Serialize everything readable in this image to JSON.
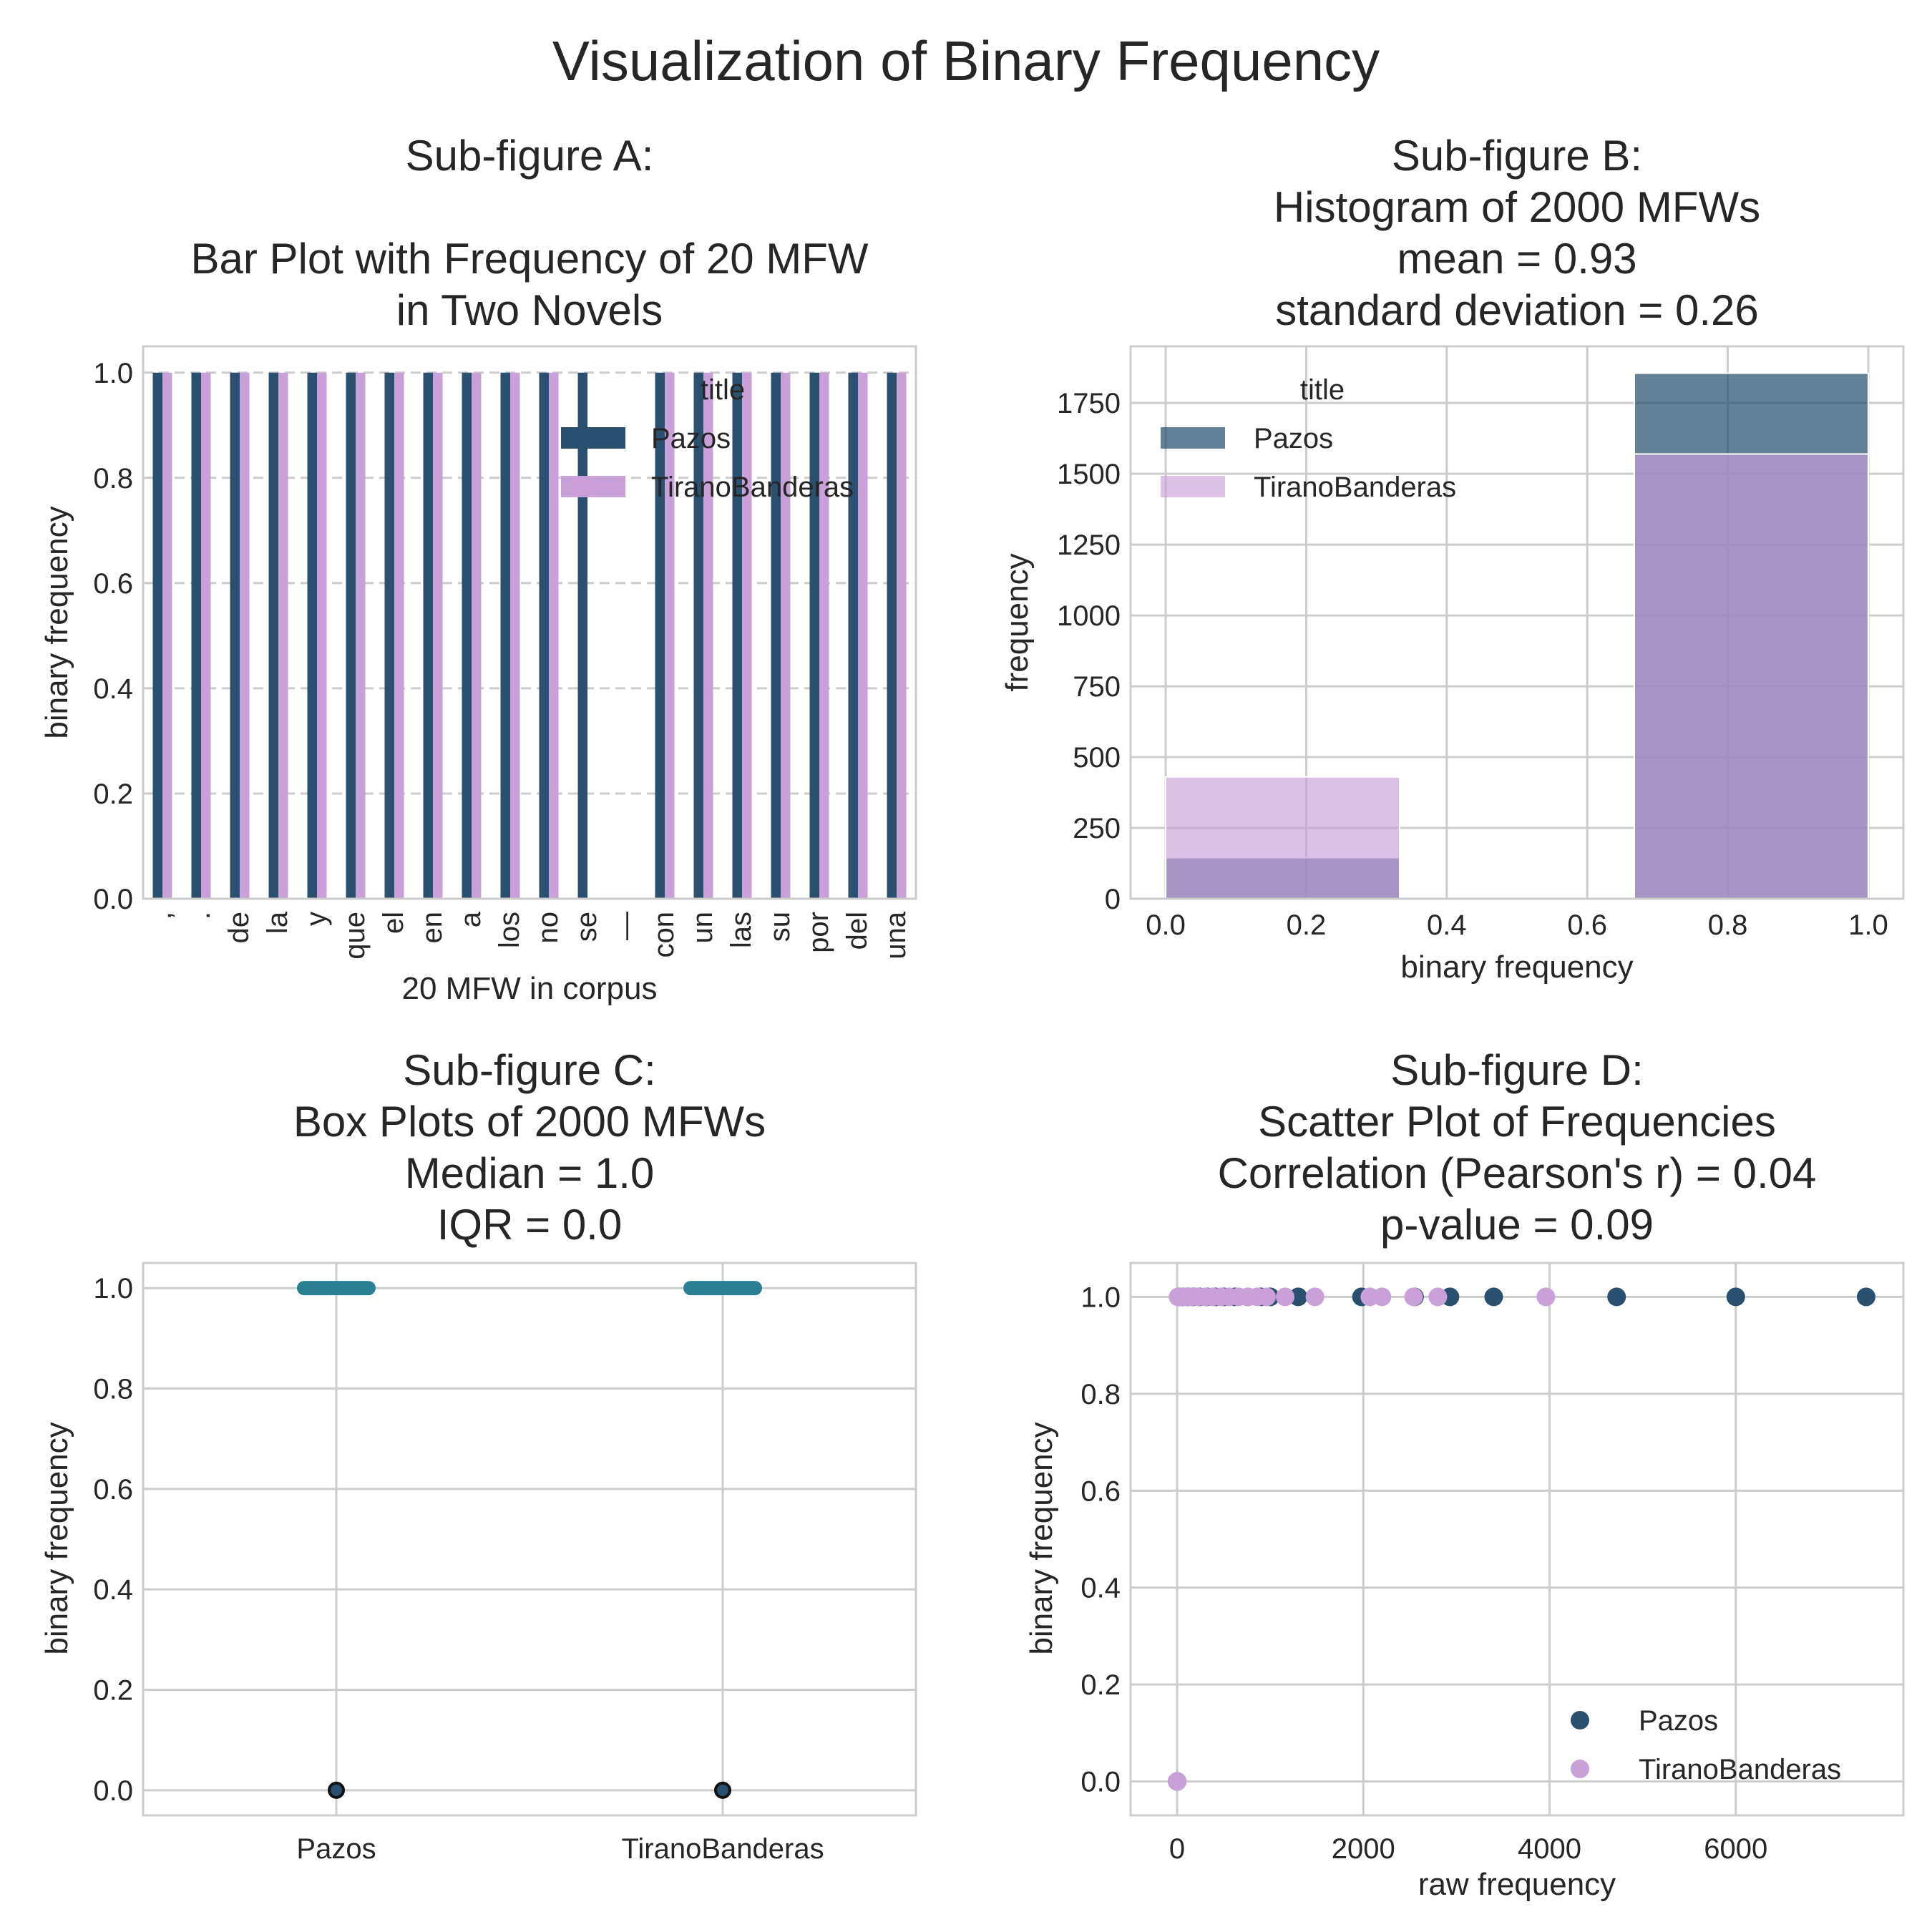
{
  "suptitle": "Visualization of Binary Frequency",
  "colors": {
    "pazos": "#2a5070",
    "tirano": "#c9a0d8",
    "box": "#2a8090",
    "grid": "#cccccc"
  },
  "chart_data": [
    {
      "id": "A",
      "type": "bar",
      "title_lines": [
        "Sub-figure A:",
        "",
        "Bar Plot with Frequency of 20 MFW",
        "in Two Novels"
      ],
      "xlabel": "20 MFW in corpus",
      "ylabel": "binary frequency",
      "ylim": [
        0,
        1.05
      ],
      "yticks": [
        "0.0",
        "0.2",
        "0.4",
        "0.6",
        "0.8",
        "1.0"
      ],
      "categories": [
        ",",
        ".",
        "de",
        "la",
        "y",
        "que",
        "el",
        "en",
        "a",
        "los",
        "no",
        "se",
        "—",
        "con",
        "un",
        "las",
        "su",
        "por",
        "del",
        "una"
      ],
      "series": [
        {
          "name": "Pazos",
          "values": [
            1,
            1,
            1,
            1,
            1,
            1,
            1,
            1,
            1,
            1,
            1,
            1,
            0,
            1,
            1,
            1,
            1,
            1,
            1,
            1
          ]
        },
        {
          "name": "TiranoBanderas",
          "values": [
            1,
            1,
            1,
            1,
            1,
            1,
            1,
            1,
            1,
            1,
            1,
            0,
            0,
            1,
            1,
            1,
            1,
            1,
            1,
            1
          ]
        }
      ],
      "legend": {
        "title": "title",
        "placement": "upper-right"
      }
    },
    {
      "id": "B",
      "type": "histogram",
      "title_lines": [
        "Sub-figure B:",
        "Histogram of 2000 MFWs",
        "mean =  0.93",
        "standard deviation = 0.26"
      ],
      "xlabel": "binary frequency",
      "ylabel": "frequency",
      "xlim": [
        -0.05,
        1.05
      ],
      "ylim": [
        0,
        1950
      ],
      "xticks": [
        "0.0",
        "0.2",
        "0.4",
        "0.6",
        "0.8",
        "1.0"
      ],
      "yticks": [
        "0",
        "250",
        "500",
        "750",
        "1000",
        "1250",
        "1500",
        "1750"
      ],
      "bins": [
        [
          0,
          0.333
        ],
        [
          0.333,
          0.667
        ],
        [
          0.667,
          1.0
        ]
      ],
      "series": [
        {
          "name": "Pazos",
          "counts": [
            145,
            0,
            1855
          ]
        },
        {
          "name": "TiranoBanderas",
          "counts": [
            430,
            0,
            1570
          ]
        }
      ],
      "legend": {
        "title": "title",
        "placement": "upper-left"
      }
    },
    {
      "id": "C",
      "type": "box",
      "title_lines": [
        "Sub-figure C:",
        "Box Plots of 2000 MFWs",
        "Median =  1.0",
        "IQR = 0.0"
      ],
      "xlabel": "",
      "ylabel": "binary frequency",
      "ylim": [
        -0.05,
        1.05
      ],
      "yticks": [
        "0.0",
        "0.2",
        "0.4",
        "0.6",
        "0.8",
        "1.0"
      ],
      "categories": [
        "Pazos",
        "TiranoBanderas"
      ],
      "median": [
        1.0,
        1.0
      ],
      "q1": [
        1.0,
        1.0
      ],
      "q3": [
        1.0,
        1.0
      ],
      "outliers": [
        [
          0.0
        ],
        [
          0.0
        ]
      ]
    },
    {
      "id": "D",
      "type": "scatter",
      "title_lines": [
        "Sub-figure D:",
        "Scatter Plot of Frequencies",
        "Correlation (Pearson's r) =  0.04",
        "p-value = 0.09"
      ],
      "xlabel": "raw frequency",
      "ylabel": "binary frequency",
      "xlim": [
        -500,
        7800
      ],
      "ylim": [
        -0.07,
        1.07
      ],
      "xticks": [
        "0",
        "2000",
        "4000",
        "6000"
      ],
      "yticks": [
        "0.0",
        "0.2",
        "0.4",
        "0.6",
        "0.8",
        "1.0"
      ],
      "series": [
        {
          "name": "Pazos",
          "points": [
            [
              0,
              0
            ],
            [
              20,
              1
            ],
            [
              60,
              1
            ],
            [
              110,
              1
            ],
            [
              170,
              1
            ],
            [
              240,
              1
            ],
            [
              320,
              1
            ],
            [
              410,
              1
            ],
            [
              500,
              1
            ],
            [
              620,
              1
            ],
            [
              760,
              1
            ],
            [
              900,
              1
            ],
            [
              1000,
              1
            ],
            [
              1300,
              1
            ],
            [
              1980,
              1
            ],
            [
              2550,
              1
            ],
            [
              2930,
              1
            ],
            [
              3400,
              1
            ],
            [
              4720,
              1
            ],
            [
              6000,
              1
            ],
            [
              7400,
              1
            ]
          ]
        },
        {
          "name": "TiranoBanderas",
          "points": [
            [
              0,
              0
            ],
            [
              10,
              1
            ],
            [
              40,
              1
            ],
            [
              90,
              1
            ],
            [
              150,
              1
            ],
            [
              220,
              1
            ],
            [
              300,
              1
            ],
            [
              380,
              1
            ],
            [
              470,
              1
            ],
            [
              560,
              1
            ],
            [
              660,
              1
            ],
            [
              760,
              1
            ],
            [
              860,
              1
            ],
            [
              960,
              1
            ],
            [
              1160,
              1
            ],
            [
              1480,
              1
            ],
            [
              2070,
              1
            ],
            [
              2200,
              1
            ],
            [
              2540,
              1
            ],
            [
              2800,
              1
            ],
            [
              3960,
              1
            ]
          ]
        }
      ],
      "legend": {
        "placement": "lower-right"
      }
    }
  ]
}
